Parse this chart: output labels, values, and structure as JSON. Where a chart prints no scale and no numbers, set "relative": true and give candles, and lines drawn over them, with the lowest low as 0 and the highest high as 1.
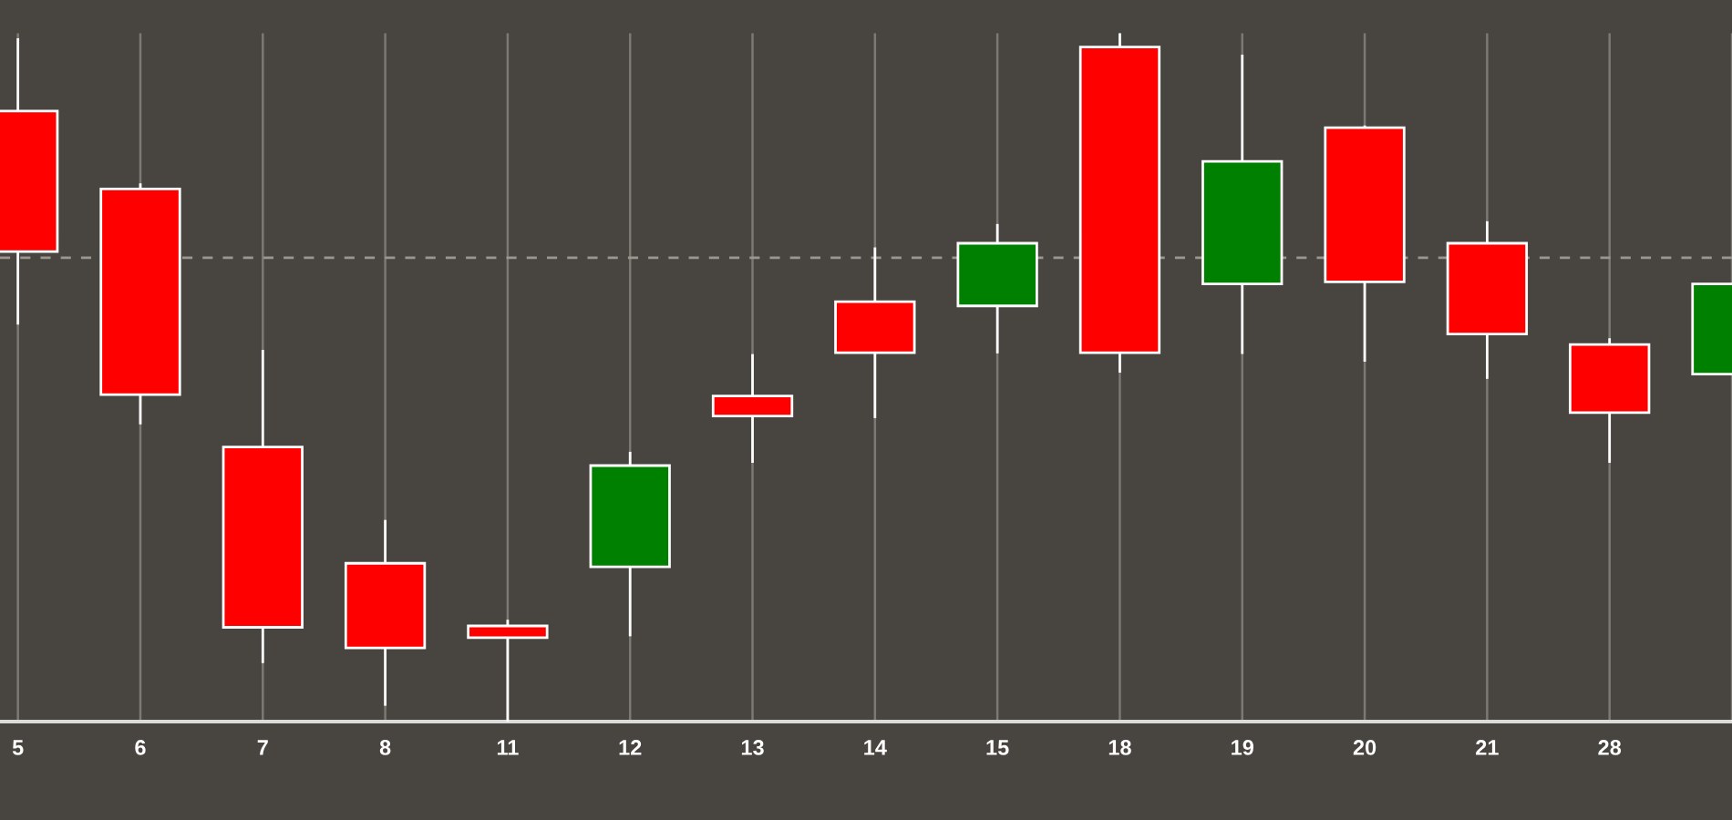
{
  "chart_data": {
    "type": "candlestick",
    "relative": true,
    "categories": [
      "5",
      "6",
      "7",
      "8",
      "11",
      "12",
      "13",
      "14",
      "15",
      "18",
      "19",
      "20",
      "21",
      "28",
      null
    ],
    "ohlc": [
      [
        0.887,
        0.993,
        0.577,
        0.683
      ],
      [
        0.774,
        0.782,
        0.432,
        0.475
      ],
      [
        0.399,
        0.54,
        0.085,
        0.137
      ],
      [
        0.23,
        0.293,
        0.023,
        0.107
      ],
      [
        0.139,
        0.148,
        0.0,
        0.122
      ],
      [
        0.225,
        0.392,
        0.124,
        0.372
      ],
      [
        0.473,
        0.534,
        0.376,
        0.444
      ],
      [
        0.61,
        0.689,
        0.441,
        0.536
      ],
      [
        0.604,
        0.723,
        0.535,
        0.695
      ],
      [
        0.98,
        1.0,
        0.507,
        0.536
      ],
      [
        0.636,
        0.969,
        0.534,
        0.814
      ],
      [
        0.863,
        0.866,
        0.523,
        0.639
      ],
      [
        0.695,
        0.727,
        0.498,
        0.563
      ],
      [
        0.548,
        0.557,
        0.376,
        0.449
      ],
      [
        0.505,
        0.636,
        0.505,
        0.636
      ]
    ],
    "colors": [
      "#ff0000",
      "#ff0000",
      "#ff0000",
      "#ff0000",
      "#ff0000",
      "#008000",
      "#ff0000",
      "#ff0000",
      "#008000",
      "#ff0000",
      "#008000",
      "#ff0000",
      "#ff0000",
      "#ff0000",
      "#008000"
    ],
    "grid": true,
    "ref_lines": [
      {
        "axis": "y",
        "value": 0.674,
        "color": "#9b978f",
        "line_style": "dashed"
      }
    ]
  }
}
